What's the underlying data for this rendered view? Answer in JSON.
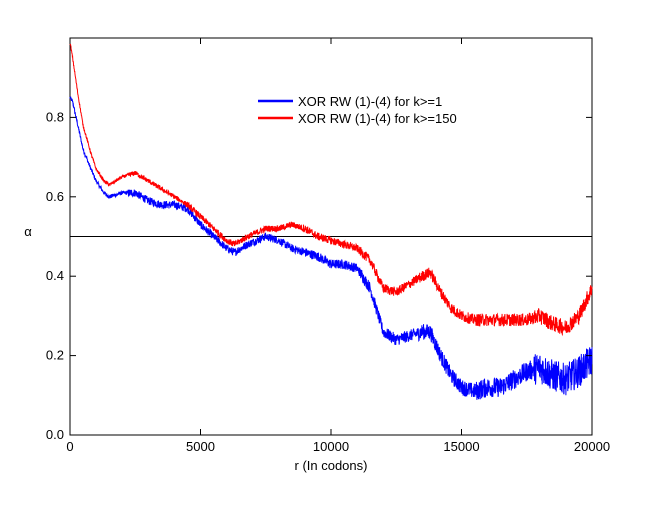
{
  "chart_data": {
    "type": "line",
    "title": "",
    "xlabel": "r (In codons)",
    "ylabel": "α",
    "xlim": [
      0,
      20000
    ],
    "ylim": [
      0.0,
      1.0
    ],
    "x_ticks": [
      0,
      5000,
      10000,
      15000,
      20000
    ],
    "y_ticks": [
      0.0,
      0.2,
      0.4,
      0.6,
      0.8
    ],
    "x_tick_labels": [
      "0",
      "5000",
      "10000",
      "15000",
      "20000"
    ],
    "y_tick_labels": [
      "0.0",
      "0.2",
      "0.4",
      "0.6",
      "0.8"
    ],
    "reference_line": {
      "y": 0.5,
      "color": "#000000"
    },
    "legend_position": "top-center",
    "series": [
      {
        "name": "XOR RW (1)-(4) for k>=1",
        "color": "#0000ff",
        "noise": [
          0.005,
          0.01,
          0.01,
          0.01,
          0.012,
          0.015,
          0.02,
          0.025,
          0.04
        ],
        "x": [
          0,
          100,
          300,
          500,
          800,
          1000,
          1300,
          1500,
          2000,
          2500,
          3000,
          3500,
          4000,
          4500,
          5000,
          5500,
          6000,
          6300,
          6800,
          7500,
          8000,
          8500,
          9000,
          9500,
          10000,
          10500,
          11000,
          11500,
          12000,
          12500,
          13000,
          13500,
          13800,
          14200,
          14600,
          15000,
          15500,
          16000,
          16500,
          17000,
          17500,
          18000,
          18500,
          19000,
          19500,
          20000
        ],
        "y": [
          0.85,
          0.84,
          0.78,
          0.72,
          0.67,
          0.64,
          0.61,
          0.6,
          0.61,
          0.61,
          0.59,
          0.58,
          0.58,
          0.57,
          0.53,
          0.5,
          0.47,
          0.46,
          0.48,
          0.5,
          0.49,
          0.47,
          0.46,
          0.45,
          0.43,
          0.43,
          0.42,
          0.37,
          0.26,
          0.24,
          0.25,
          0.26,
          0.26,
          0.2,
          0.15,
          0.12,
          0.11,
          0.12,
          0.12,
          0.14,
          0.16,
          0.17,
          0.15,
          0.14,
          0.16,
          0.19
        ]
      },
      {
        "name": "XOR RW (1)-(4) for k>=150",
        "color": "#ff0000",
        "noise": [
          0.004,
          0.006,
          0.008,
          0.008,
          0.01,
          0.012,
          0.014,
          0.016,
          0.02
        ],
        "x": [
          0,
          100,
          300,
          500,
          800,
          1000,
          1300,
          1500,
          2000,
          2500,
          3000,
          3500,
          4000,
          4500,
          5000,
          5500,
          6000,
          6300,
          6800,
          7500,
          8000,
          8500,
          9000,
          9500,
          10000,
          10500,
          11000,
          11500,
          12000,
          12500,
          13000,
          13500,
          13800,
          14200,
          14600,
          15000,
          15500,
          16000,
          16500,
          17000,
          17500,
          18000,
          18500,
          19000,
          19500,
          20000
        ],
        "y": [
          0.99,
          0.95,
          0.86,
          0.78,
          0.71,
          0.67,
          0.64,
          0.63,
          0.65,
          0.66,
          0.64,
          0.62,
          0.6,
          0.58,
          0.55,
          0.52,
          0.49,
          0.48,
          0.5,
          0.52,
          0.52,
          0.53,
          0.52,
          0.5,
          0.49,
          0.48,
          0.47,
          0.44,
          0.37,
          0.36,
          0.38,
          0.4,
          0.41,
          0.36,
          0.32,
          0.3,
          0.29,
          0.29,
          0.29,
          0.29,
          0.29,
          0.3,
          0.28,
          0.27,
          0.3,
          0.37
        ]
      }
    ]
  }
}
